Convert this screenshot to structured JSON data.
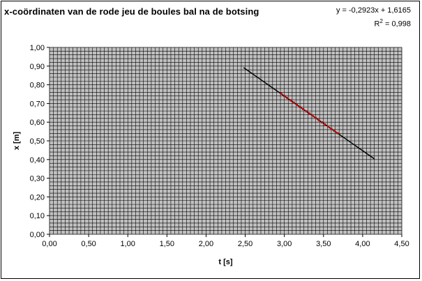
{
  "chart_data": {
    "type": "scatter",
    "title": "x-coördinaten van de rode jeu de boules bal na de botsing",
    "xlabel": "t [s]",
    "ylabel": "x [m]",
    "xlim": [
      0,
      4.5
    ],
    "ylim": [
      0,
      1.0
    ],
    "x_ticks": [
      "0,00",
      "0,50",
      "1,00",
      "1,50",
      "2,00",
      "2,50",
      "3,00",
      "3,50",
      "4,00",
      "4,50"
    ],
    "y_ticks": [
      "0,00",
      "0,10",
      "0,20",
      "0,30",
      "0,40",
      "0,50",
      "0,60",
      "0,70",
      "0,80",
      "0,90",
      "1,00"
    ],
    "grid": true,
    "plot_background": "#c0c0c0",
    "grid_color": "#000000",
    "trendline": {
      "equation_text": "y = -0,2923x + 1,6165",
      "r2_label": "R",
      "r2_sup": "2",
      "r2_value": " = 0,998",
      "slope": -0.2923,
      "intercept": 1.6165,
      "x_range": [
        2.48,
        4.15
      ],
      "color": "#000000"
    },
    "series": [
      {
        "color": "#cc0000",
        "x": [
          2.96,
          3.0,
          3.04,
          3.08,
          3.12,
          3.16,
          3.2,
          3.24,
          3.28,
          3.32,
          3.36,
          3.4,
          3.44,
          3.48,
          3.52,
          3.56,
          3.6,
          3.64,
          3.68
        ],
        "y": [
          0.752,
          0.74,
          0.729,
          0.717,
          0.705,
          0.693,
          0.681,
          0.67,
          0.658,
          0.646,
          0.635,
          0.623,
          0.611,
          0.599,
          0.588,
          0.576,
          0.564,
          0.553,
          0.541
        ]
      }
    ]
  }
}
